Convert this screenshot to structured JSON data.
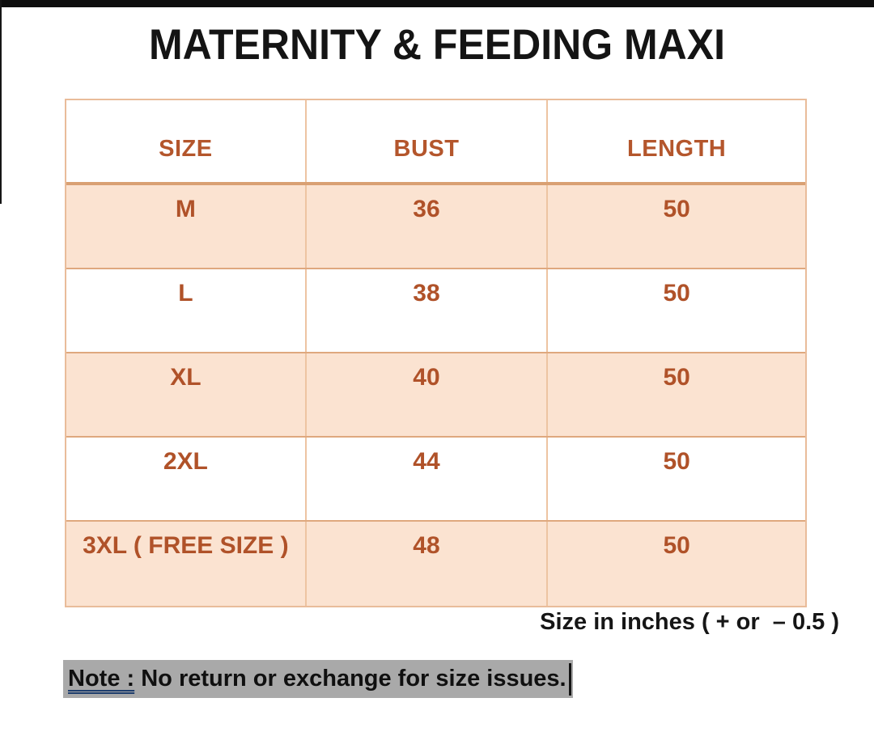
{
  "title": "MATERNITY & FEEDING MAXI",
  "chart_data": {
    "type": "table",
    "title": "MATERNITY & FEEDING MAXI",
    "columns": [
      "SIZE",
      "BUST",
      "LENGTH"
    ],
    "rows": [
      [
        "M",
        36,
        50
      ],
      [
        "L",
        38,
        50
      ],
      [
        "XL",
        40,
        50
      ],
      [
        "2XL",
        44,
        50
      ],
      [
        "3XL ( FREE SIZE )",
        48,
        50
      ]
    ],
    "unit_note": "Size in inches ( + or  – 0.5 )"
  },
  "table": {
    "columns": [
      "SIZE",
      "BUST",
      "LENGTH"
    ],
    "rows": [
      {
        "size": "M",
        "bust": "36",
        "length": "50"
      },
      {
        "size": "L",
        "bust": "38",
        "length": "50"
      },
      {
        "size": "XL",
        "bust": "40",
        "length": "50"
      },
      {
        "size": "2XL",
        "bust": "44",
        "length": "50"
      },
      {
        "size": "3XL ( FREE SIZE )",
        "bust": "48",
        "length": "50"
      }
    ]
  },
  "unit_note": "Size in inches ( + or  – 0.5 )",
  "note": {
    "label": "Note :",
    "text": " No return or exchange for size issues."
  },
  "colors": {
    "accent_text": "#b05229",
    "row_fill": "#fbe3d1",
    "grid_border": "#e9bc9a",
    "header_rule": "#d9a073",
    "note_highlight": "#a9a9a9",
    "note_underline": "#1e3e6d",
    "title_text": "#141414"
  }
}
